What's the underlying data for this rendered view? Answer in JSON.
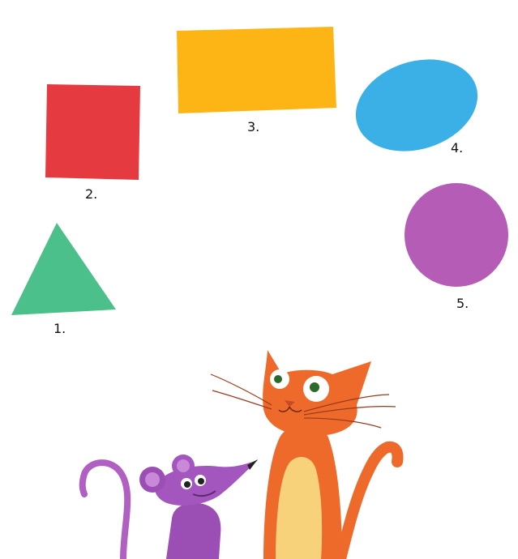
{
  "shapes": [
    {
      "number_label": "1.",
      "shape": "triangle",
      "color": "#4CC08A"
    },
    {
      "number_label": "2.",
      "shape": "square",
      "color": "#E53A40"
    },
    {
      "number_label": "3.",
      "shape": "rectangle",
      "color": "#FCB514"
    },
    {
      "number_label": "4.",
      "shape": "oval",
      "color": "#3BB0E6"
    },
    {
      "number_label": "5.",
      "shape": "circle",
      "color": "#B45CB6"
    }
  ],
  "characters": [
    {
      "name": "mouse",
      "color": "#9B4FB5"
    },
    {
      "name": "cat",
      "color": "#EE6A2A"
    }
  ]
}
